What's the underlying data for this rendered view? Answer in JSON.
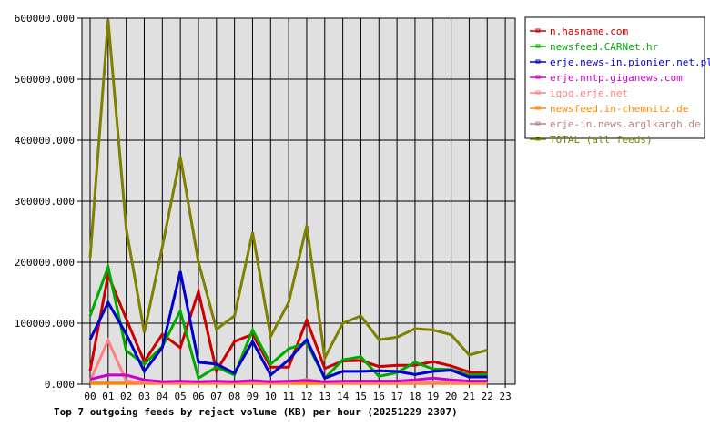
{
  "chart_data": {
    "type": "line",
    "title": "Top 7 outgoing feeds by reject volume (KB) per hour (20251229 2307)",
    "xlabel": "",
    "ylabel": "",
    "x_ticks": [
      "00",
      "01",
      "02",
      "03",
      "04",
      "05",
      "06",
      "07",
      "08",
      "09",
      "10",
      "11",
      "12",
      "13",
      "14",
      "15",
      "16",
      "17",
      "18",
      "19",
      "20",
      "21",
      "22",
      "23"
    ],
    "y_ticks": [
      "0.000",
      "100000.000",
      "200000.000",
      "300000.000",
      "400000.000",
      "500000.000",
      "600000.000"
    ],
    "ylim": [
      0,
      600000
    ],
    "grid": true,
    "legend_position": "right-top",
    "x": [
      "00",
      "01",
      "02",
      "03",
      "04",
      "05",
      "06",
      "07",
      "08",
      "09",
      "10",
      "11",
      "12",
      "13",
      "14",
      "15",
      "16",
      "17",
      "18",
      "19",
      "20",
      "21",
      "22"
    ],
    "series": [
      {
        "name": "n.hasname.com",
        "color": "#cc0000",
        "values": [
          22000,
          179000,
          107000,
          37000,
          82000,
          60000,
          152000,
          22000,
          70000,
          82000,
          28000,
          28000,
          105000,
          26000,
          38000,
          39000,
          29000,
          31000,
          31000,
          37000,
          30000,
          20000,
          18000
        ]
      },
      {
        "name": "newsfeed.CARNet.hr",
        "color": "#00aa00",
        "values": [
          112000,
          192000,
          55000,
          33000,
          62000,
          120000,
          10000,
          28000,
          15000,
          89000,
          33000,
          58000,
          68000,
          10000,
          40000,
          45000,
          13000,
          19000,
          36000,
          25000,
          24000,
          15000,
          16000
        ]
      },
      {
        "name": "erje.news-in.pionier.net.pl",
        "color": "#0000cc",
        "values": [
          73000,
          134000,
          82000,
          21000,
          60000,
          185000,
          36000,
          33000,
          18000,
          70000,
          15000,
          40000,
          73000,
          10000,
          21000,
          21000,
          22000,
          21000,
          16000,
          21000,
          23000,
          12000,
          12000
        ]
      },
      {
        "name": "erje.nntp.giganews.com",
        "color": "#cc00cc",
        "values": [
          8000,
          15000,
          15000,
          7000,
          4000,
          5000,
          4000,
          5000,
          4000,
          6000,
          4000,
          5000,
          6000,
          4000,
          5000,
          5000,
          5000,
          5000,
          7000,
          10000,
          7000,
          5000,
          5000
        ]
      },
      {
        "name": "iqoq.erje.net",
        "color": "#ff8080",
        "values": [
          5000,
          72000,
          5000,
          3000,
          3000,
          3000,
          3000,
          3000,
          3000,
          3000,
          3000,
          3000,
          8000,
          3000,
          3000,
          3000,
          3000,
          3000,
          3000,
          3000,
          3000,
          3000,
          3000
        ]
      },
      {
        "name": "newsfeed.in-chemnitz.de",
        "color": "#ff8800",
        "values": [
          1000,
          1000,
          1000,
          1000,
          1000,
          1000,
          1000,
          1000,
          1000,
          1000,
          1000,
          1000,
          1000,
          1000,
          1000,
          1000,
          1000,
          1000,
          1000,
          1000,
          1000,
          1000,
          1000
        ]
      },
      {
        "name": "erje-in.news.arglkargh.de",
        "color": "#c08080",
        "values": [
          2000,
          2000,
          2000,
          2000,
          2000,
          2000,
          2000,
          2000,
          2000,
          2000,
          2000,
          2000,
          2000,
          2000,
          2000,
          2000,
          2000,
          2000,
          2000,
          2000,
          2000,
          2000,
          2000
        ]
      },
      {
        "name": "TOTAL (all feeds)",
        "color": "#808000",
        "values": [
          207000,
          597000,
          255000,
          85000,
          225000,
          373000,
          200000,
          90000,
          112000,
          249000,
          78000,
          134000,
          260000,
          43000,
          100000,
          112000,
          73000,
          77000,
          91000,
          89000,
          81000,
          48000,
          56000
        ]
      }
    ]
  },
  "colors": {
    "plot_background": "#e0e0e0",
    "grid": "#000000",
    "axis": "#000000"
  }
}
